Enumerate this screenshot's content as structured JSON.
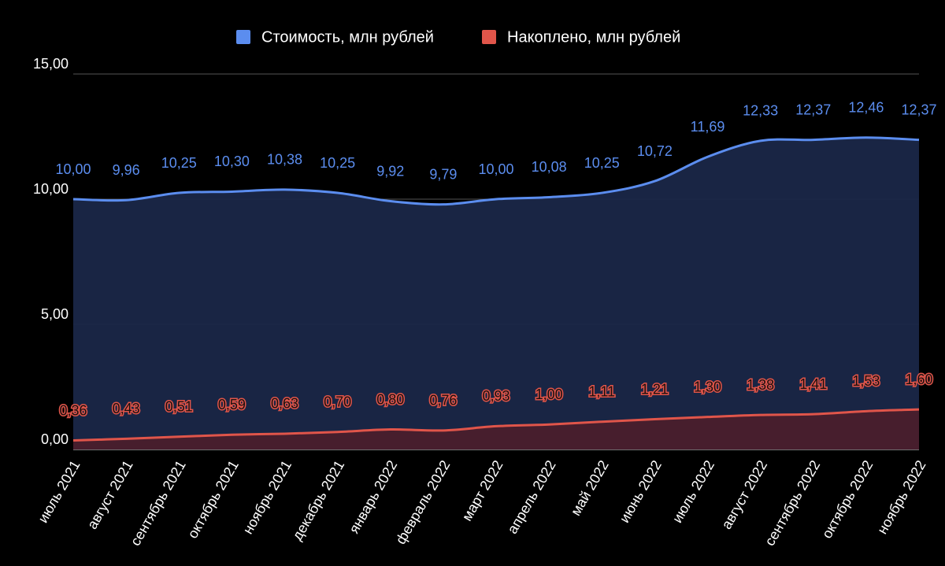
{
  "chart_data": {
    "type": "area",
    "categories": [
      "июль 2021",
      "август 2021",
      "сентябрь 2021",
      "октябрь 2021",
      "ноябрь 2021",
      "декабрь 2021",
      "январь 2022",
      "февраль 2022",
      "март 2022",
      "апрель 2022",
      "май 2022",
      "июнь 2022",
      "июль 2022",
      "август 2022",
      "сентябрь 2022",
      "октябрь 2022",
      "ноябрь 2022"
    ],
    "series": [
      {
        "name": "Стоимость, млн рублей",
        "color": "#5b8def",
        "values": [
          10.0,
          9.96,
          10.25,
          10.3,
          10.38,
          10.25,
          9.92,
          9.79,
          10.0,
          10.08,
          10.25,
          10.72,
          11.69,
          12.33,
          12.37,
          12.46,
          12.37
        ],
        "value_labels": [
          "10,00",
          "9,96",
          "10,25",
          "10,30",
          "10,38",
          "10,25",
          "9,92",
          "9,79",
          "10,00",
          "10,08",
          "10,25",
          "10,72",
          "11,69",
          "12,33",
          "12,37",
          "12,46",
          "12,37"
        ]
      },
      {
        "name": "Накоплено, млн рублей",
        "color": "#e0554a",
        "values": [
          0.36,
          0.43,
          0.51,
          0.59,
          0.63,
          0.7,
          0.8,
          0.76,
          0.93,
          1.0,
          1.11,
          1.21,
          1.3,
          1.38,
          1.41,
          1.53,
          1.6
        ],
        "value_labels": [
          "0,36",
          "0,43",
          "0,51",
          "0,59",
          "0,63",
          "0,70",
          "0,80",
          "0,76",
          "0,93",
          "1,00",
          "1,11",
          "1,21",
          "1,30",
          "1,38",
          "1,41",
          "1,53",
          "1,60"
        ]
      }
    ],
    "ylim": [
      0,
      15
    ],
    "yticks": [
      {
        "value": 0,
        "label": "0,00"
      },
      {
        "value": 5,
        "label": "5,00"
      },
      {
        "value": 10,
        "label": "10,00"
      },
      {
        "value": 15,
        "label": "15,00"
      }
    ],
    "grid": true,
    "legend": "top"
  }
}
